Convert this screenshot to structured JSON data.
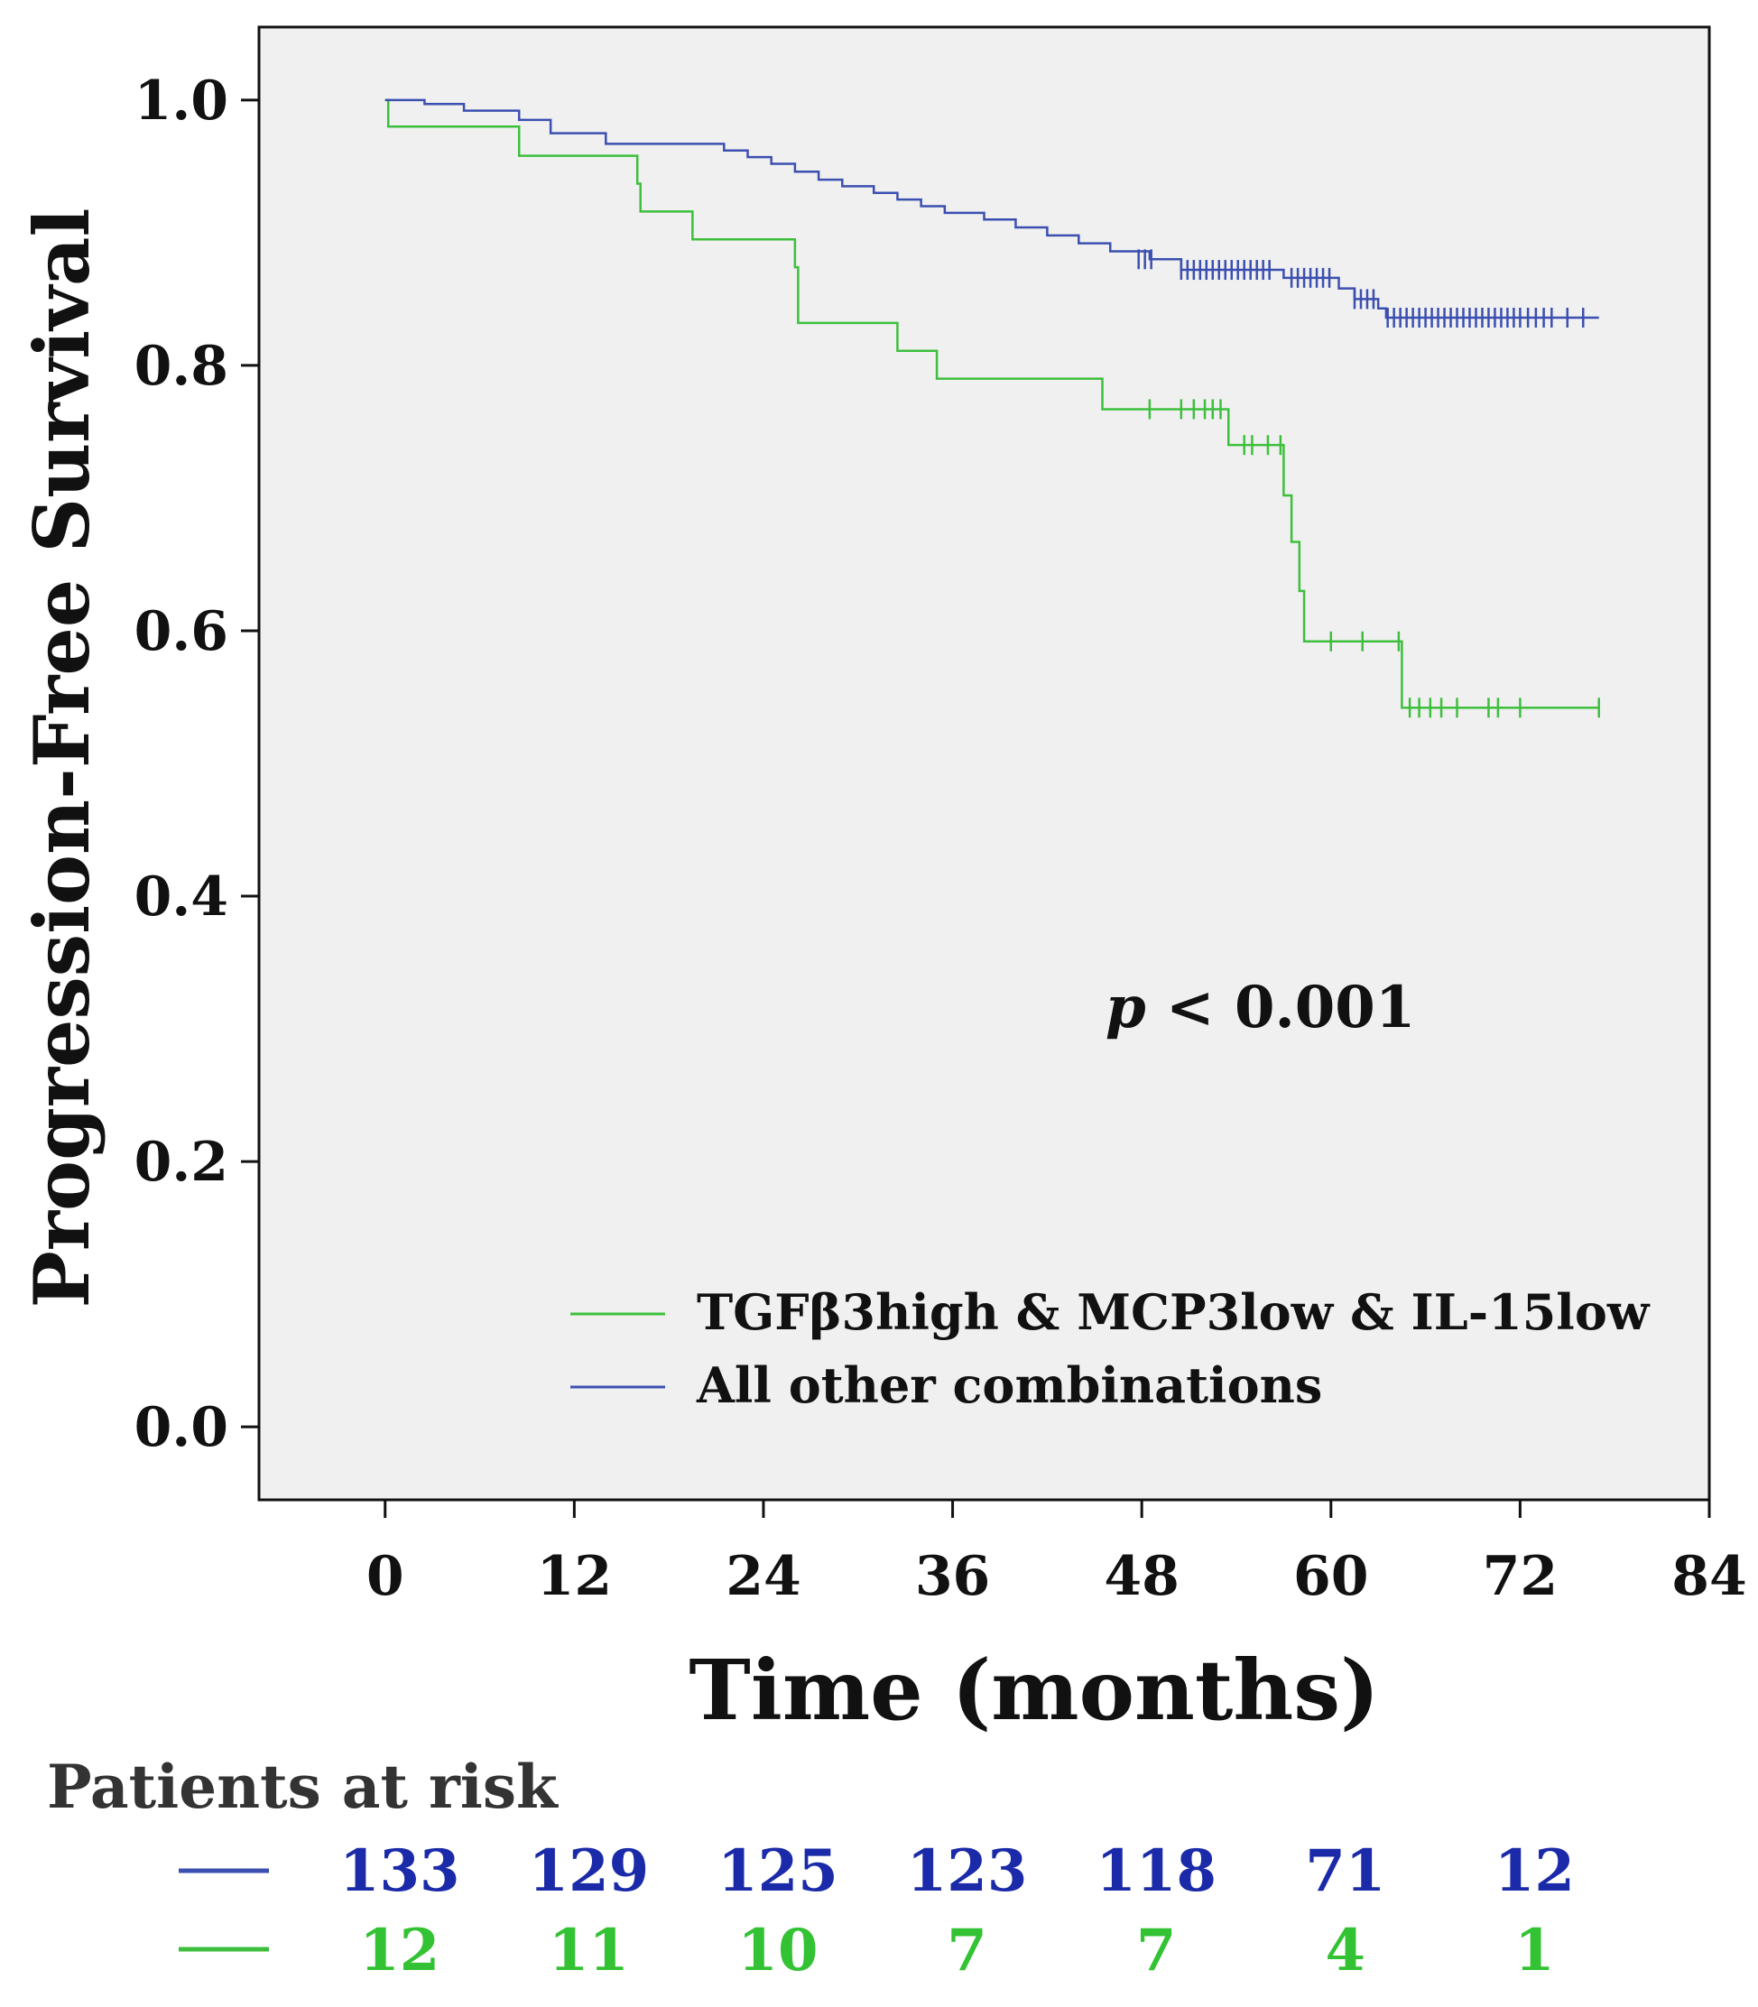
{
  "chart_data": {
    "type": "line",
    "subtype": "kaplan-meier",
    "xlabel": "Time (months)",
    "ylabel": "Progression-Free Survival",
    "xlim": [
      -8,
      84
    ],
    "ylim": [
      -0.055,
      1.055
    ],
    "xticks": [
      0,
      12,
      24,
      36,
      48,
      60,
      72,
      84
    ],
    "yticks": [
      0.0,
      0.2,
      0.4,
      0.6,
      0.8,
      1.0
    ],
    "ytick_labels": [
      "0.0",
      "0.2",
      "0.4",
      "0.6",
      "0.8",
      "1.0"
    ],
    "annotation": {
      "italic": "p",
      "rest": " < 0.001"
    },
    "colors": {
      "green": "#3dbf3d",
      "blue": "#3b4fb0",
      "plot_bg": "#f0f0f0",
      "risk_blue": "#1a2aa8",
      "risk_green": "#33c233"
    },
    "series": [
      {
        "name": "TGFβ3high & MCP3low & IL-15low",
        "color": "#3dbf3d",
        "steps": [
          [
            0,
            1.0
          ],
          [
            0.2,
            0.98
          ],
          [
            8.5,
            0.958
          ],
          [
            16,
            0.937
          ],
          [
            16.2,
            0.916
          ],
          [
            19.5,
            0.895
          ],
          [
            26,
            0.874
          ],
          [
            26.2,
            0.832
          ],
          [
            32.5,
            0.811
          ],
          [
            35,
            0.79
          ],
          [
            45.5,
            0.767
          ],
          [
            53.5,
            0.74
          ],
          [
            57,
            0.702
          ],
          [
            57.5,
            0.667
          ],
          [
            58,
            0.63
          ],
          [
            58.3,
            0.592
          ],
          [
            64.5,
            0.542
          ],
          [
            77,
            0.542
          ]
        ],
        "censored": [
          [
            48.5,
            0.767
          ],
          [
            50.5,
            0.767
          ],
          [
            51.3,
            0.767
          ],
          [
            52,
            0.767
          ],
          [
            52.5,
            0.767
          ],
          [
            53,
            0.767
          ],
          [
            54.5,
            0.74
          ],
          [
            55,
            0.74
          ],
          [
            56,
            0.74
          ],
          [
            56.8,
            0.74
          ],
          [
            60,
            0.592
          ],
          [
            62,
            0.592
          ],
          [
            64.3,
            0.592
          ],
          [
            65,
            0.542
          ],
          [
            65.6,
            0.542
          ],
          [
            66.3,
            0.542
          ],
          [
            67,
            0.542
          ],
          [
            68,
            0.542
          ],
          [
            70,
            0.542
          ],
          [
            70.6,
            0.542
          ],
          [
            72,
            0.542
          ],
          [
            77,
            0.542
          ]
        ]
      },
      {
        "name": "All other combinations",
        "color": "#3b4fb0",
        "steps": [
          [
            0,
            1.0
          ],
          [
            2.5,
            0.997
          ],
          [
            5,
            0.992
          ],
          [
            8.5,
            0.985
          ],
          [
            10.5,
            0.975
          ],
          [
            14,
            0.967
          ],
          [
            21.5,
            0.962
          ],
          [
            23,
            0.957
          ],
          [
            24.5,
            0.952
          ],
          [
            26,
            0.946
          ],
          [
            27.5,
            0.94
          ],
          [
            29,
            0.935
          ],
          [
            31,
            0.93
          ],
          [
            32.5,
            0.925
          ],
          [
            34,
            0.92
          ],
          [
            35.5,
            0.915
          ],
          [
            38,
            0.91
          ],
          [
            40,
            0.904
          ],
          [
            42,
            0.898
          ],
          [
            44,
            0.892
          ],
          [
            46,
            0.886
          ],
          [
            48.5,
            0.88
          ],
          [
            50.5,
            0.872
          ],
          [
            57,
            0.866
          ],
          [
            60.5,
            0.858
          ],
          [
            61.5,
            0.85
          ],
          [
            63,
            0.843
          ],
          [
            63.5,
            0.836
          ],
          [
            77,
            0.836
          ]
        ],
        "censored": [
          [
            47.8,
            0.88
          ],
          [
            48.2,
            0.88
          ],
          [
            48.6,
            0.88
          ],
          [
            50.5,
            0.872
          ],
          [
            50.9,
            0.872
          ],
          [
            51.3,
            0.872
          ],
          [
            51.7,
            0.872
          ],
          [
            52.1,
            0.872
          ],
          [
            52.5,
            0.872
          ],
          [
            52.9,
            0.872
          ],
          [
            53.3,
            0.872
          ],
          [
            53.7,
            0.872
          ],
          [
            54.1,
            0.872
          ],
          [
            54.5,
            0.872
          ],
          [
            54.9,
            0.872
          ],
          [
            55.3,
            0.872
          ],
          [
            55.7,
            0.872
          ],
          [
            56.1,
            0.872
          ],
          [
            57.5,
            0.866
          ],
          [
            57.9,
            0.866
          ],
          [
            58.3,
            0.866
          ],
          [
            58.7,
            0.866
          ],
          [
            59.1,
            0.866
          ],
          [
            59.5,
            0.866
          ],
          [
            59.9,
            0.866
          ],
          [
            61.5,
            0.85
          ],
          [
            61.9,
            0.85
          ],
          [
            62.3,
            0.85
          ],
          [
            62.7,
            0.85
          ],
          [
            63.6,
            0.836
          ],
          [
            64,
            0.836
          ],
          [
            64.4,
            0.836
          ],
          [
            64.8,
            0.836
          ],
          [
            65.2,
            0.836
          ],
          [
            65.6,
            0.836
          ],
          [
            66,
            0.836
          ],
          [
            66.4,
            0.836
          ],
          [
            66.8,
            0.836
          ],
          [
            67.2,
            0.836
          ],
          [
            67.6,
            0.836
          ],
          [
            68,
            0.836
          ],
          [
            68.4,
            0.836
          ],
          [
            68.8,
            0.836
          ],
          [
            69.2,
            0.836
          ],
          [
            69.6,
            0.836
          ],
          [
            70,
            0.836
          ],
          [
            70.4,
            0.836
          ],
          [
            70.8,
            0.836
          ],
          [
            71.2,
            0.836
          ],
          [
            71.6,
            0.836
          ],
          [
            72,
            0.836
          ],
          [
            72.5,
            0.836
          ],
          [
            73,
            0.836
          ],
          [
            73.5,
            0.836
          ],
          [
            74,
            0.836
          ],
          [
            75,
            0.836
          ],
          [
            76,
            0.836
          ]
        ]
      }
    ],
    "risk_table": {
      "title": "Patients at risk",
      "rows": [
        {
          "name": "All other combinations",
          "color": "#1a2aa8",
          "values": [
            "133",
            "129",
            "125",
            "123",
            "118",
            "71",
            "12"
          ]
        },
        {
          "name": "TGFβ3high & MCP3low & IL-15low",
          "color": "#33c233",
          "values": [
            "12",
            "11",
            "10",
            "7",
            "7",
            "4",
            "1"
          ]
        }
      ]
    }
  }
}
